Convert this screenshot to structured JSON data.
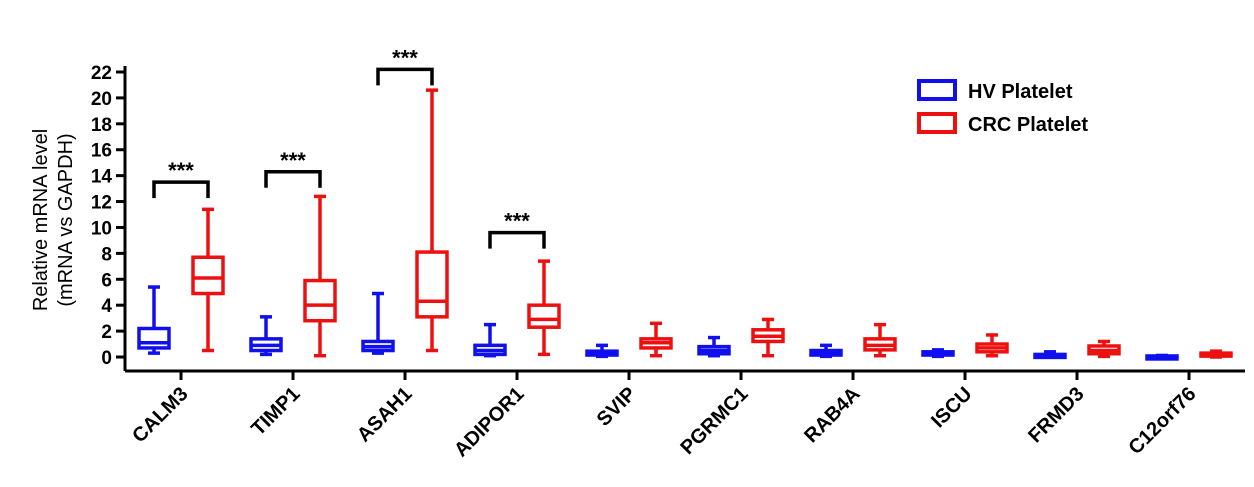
{
  "chart_data": {
    "type": "boxplot",
    "title": "",
    "ylabel_line1": "Relative mRNA level",
    "ylabel_line2": "(mRNA vs GAPDH)",
    "ylim": [
      0,
      22
    ],
    "yticks": [
      0,
      2,
      4,
      6,
      8,
      10,
      12,
      14,
      16,
      18,
      20,
      22
    ],
    "categories": [
      "CALM3",
      "TIMP1",
      "ASAH1",
      "ADIPOR1",
      "SVIP",
      "PGRMC1",
      "RAB4A",
      "ISCU",
      "FRMD3",
      "C12orf76"
    ],
    "legend_position": "top-right",
    "series": [
      {
        "name": "HV Platelet",
        "color": "#1010ee",
        "boxes": [
          {
            "min": 0.3,
            "q1": 0.7,
            "median": 1.1,
            "q3": 2.2,
            "max": 5.4
          },
          {
            "min": 0.2,
            "q1": 0.5,
            "median": 0.9,
            "q3": 1.4,
            "max": 3.1
          },
          {
            "min": 0.3,
            "q1": 0.5,
            "median": 0.8,
            "q3": 1.2,
            "max": 4.9
          },
          {
            "min": 0.1,
            "q1": 0.2,
            "median": 0.5,
            "q3": 0.9,
            "max": 2.5
          },
          {
            "min": 0.05,
            "q1": 0.15,
            "median": 0.3,
            "q3": 0.45,
            "max": 0.9
          },
          {
            "min": 0.1,
            "q1": 0.25,
            "median": 0.5,
            "q3": 0.8,
            "max": 1.5
          },
          {
            "min": 0.05,
            "q1": 0.15,
            "median": 0.3,
            "q3": 0.5,
            "max": 0.9
          },
          {
            "min": 0.05,
            "q1": 0.15,
            "median": 0.25,
            "q3": 0.4,
            "max": 0.55
          },
          {
            "min": 0.0,
            "q1": 0.05,
            "median": 0.1,
            "q3": 0.2,
            "max": 0.4
          },
          {
            "min": 0.0,
            "q1": 0.02,
            "median": 0.05,
            "q3": 0.08,
            "max": 0.12
          }
        ]
      },
      {
        "name": "CRC Platelet",
        "color": "#ee1010",
        "boxes": [
          {
            "min": 0.5,
            "q1": 4.9,
            "median": 6.1,
            "q3": 7.7,
            "max": 11.4
          },
          {
            "min": 0.1,
            "q1": 2.8,
            "median": 4.0,
            "q3": 5.9,
            "max": 12.4
          },
          {
            "min": 0.5,
            "q1": 3.1,
            "median": 4.3,
            "q3": 8.1,
            "max": 20.6
          },
          {
            "min": 0.2,
            "q1": 2.3,
            "median": 2.9,
            "q3": 4.0,
            "max": 7.4
          },
          {
            "min": 0.1,
            "q1": 0.7,
            "median": 1.1,
            "q3": 1.4,
            "max": 2.6
          },
          {
            "min": 0.1,
            "q1": 1.2,
            "median": 1.6,
            "q3": 2.1,
            "max": 2.9
          },
          {
            "min": 0.1,
            "q1": 0.55,
            "median": 0.9,
            "q3": 1.4,
            "max": 2.5
          },
          {
            "min": 0.1,
            "q1": 0.4,
            "median": 0.7,
            "q3": 1.0,
            "max": 1.7
          },
          {
            "min": 0.05,
            "q1": 0.25,
            "median": 0.5,
            "q3": 0.85,
            "max": 1.2
          },
          {
            "min": 0.0,
            "q1": 0.08,
            "median": 0.18,
            "q3": 0.3,
            "max": 0.45
          }
        ]
      }
    ],
    "annotations": [
      {
        "category": "CALM3",
        "label": "***",
        "y": 13.5
      },
      {
        "category": "TIMP1",
        "label": "***",
        "y": 14.3
      },
      {
        "category": "ASAH1",
        "label": "***",
        "y": 22.2
      },
      {
        "category": "ADIPOR1",
        "label": "***",
        "y": 9.6
      }
    ]
  }
}
